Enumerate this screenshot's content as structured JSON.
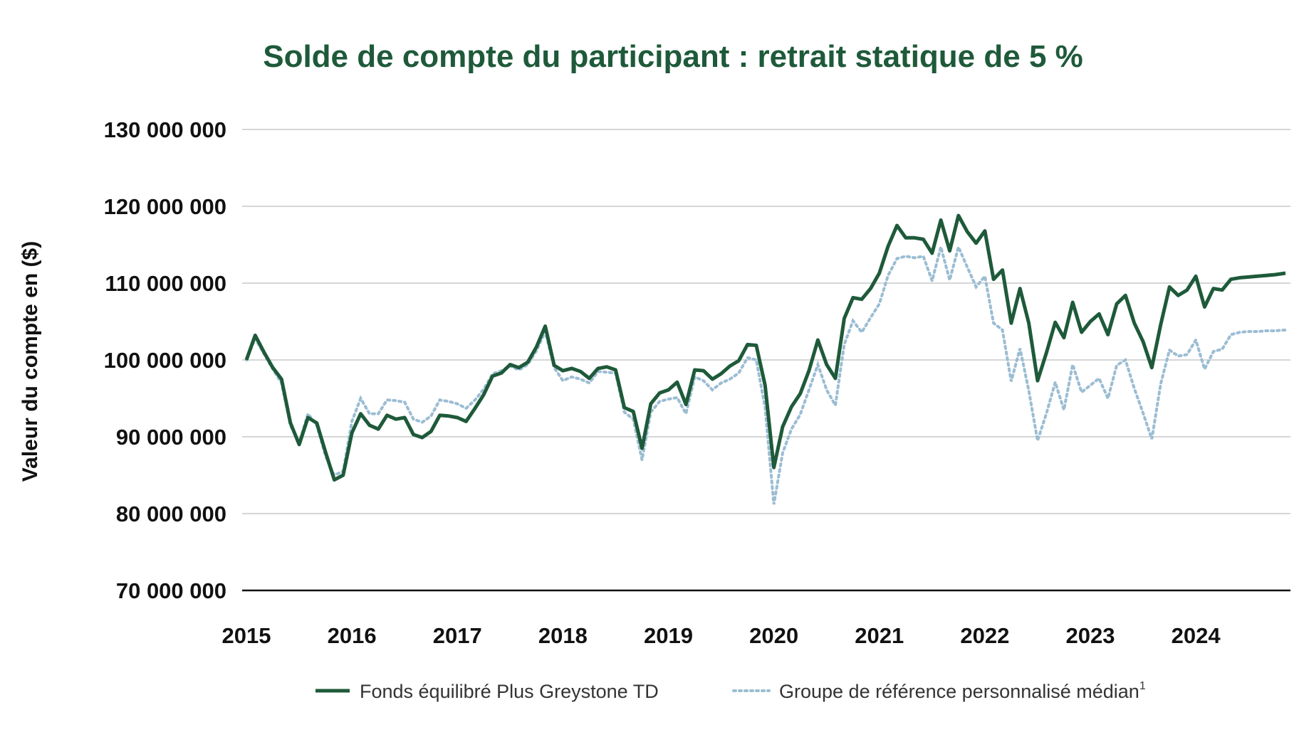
{
  "chart_data": {
    "type": "line",
    "title": "Solde de compte du participant : retrait statique de 5 %",
    "ylabel": "Valeur du compte en ($)",
    "xlabel": "",
    "ylim": [
      70000000,
      130000000
    ],
    "yticks": [
      {
        "value": 70000000,
        "label": "70 000 000"
      },
      {
        "value": 80000000,
        "label": "80 000 000"
      },
      {
        "value": 90000000,
        "label": "90 000 000"
      },
      {
        "value": 100000000,
        "label": "100 000 000"
      },
      {
        "value": 110000000,
        "label": "110 000 000"
      },
      {
        "value": 120000000,
        "label": "120 000 000"
      },
      {
        "value": 130000000,
        "label": "130 000 000"
      }
    ],
    "xlim": [
      2015.0,
      2024.85
    ],
    "xticks": [
      {
        "value": 2015,
        "label": "2015"
      },
      {
        "value": 2016,
        "label": "2016"
      },
      {
        "value": 2017,
        "label": "2017"
      },
      {
        "value": 2018,
        "label": "2018"
      },
      {
        "value": 2019,
        "label": "2019"
      },
      {
        "value": 2020,
        "label": "2020"
      },
      {
        "value": 2021,
        "label": "2021"
      },
      {
        "value": 2022,
        "label": "2022"
      },
      {
        "value": 2023,
        "label": "2023"
      },
      {
        "value": 2024,
        "label": "2024"
      }
    ],
    "grid": true,
    "legend_position": "bottom",
    "series": [
      {
        "name": "Fonds équilibré Plus Greystone TD",
        "color": "#1e5a3a",
        "style": "solid",
        "x": [
          2015.0,
          2015.083,
          2015.167,
          2015.25,
          2015.333,
          2015.417,
          2015.5,
          2015.583,
          2015.667,
          2015.75,
          2015.833,
          2015.917,
          2016.0,
          2016.083,
          2016.167,
          2016.25,
          2016.333,
          2016.417,
          2016.5,
          2016.583,
          2016.667,
          2016.75,
          2016.833,
          2016.917,
          2017.0,
          2017.083,
          2017.167,
          2017.25,
          2017.333,
          2017.417,
          2017.5,
          2017.583,
          2017.667,
          2017.75,
          2017.833,
          2017.917,
          2018.0,
          2018.083,
          2018.167,
          2018.25,
          2018.333,
          2018.417,
          2018.5,
          2018.583,
          2018.667,
          2018.75,
          2018.833,
          2018.917,
          2019.0,
          2019.083,
          2019.167,
          2019.25,
          2019.333,
          2019.417,
          2019.5,
          2019.583,
          2019.667,
          2019.75,
          2019.833,
          2019.917,
          2020.0,
          2020.083,
          2020.167,
          2020.25,
          2020.333,
          2020.417,
          2020.5,
          2020.583,
          2020.667,
          2020.75,
          2020.833,
          2020.917,
          2021.0,
          2021.083,
          2021.167,
          2021.25,
          2021.333,
          2021.417,
          2021.5,
          2021.583,
          2021.667,
          2021.75,
          2021.833,
          2021.917,
          2022.0,
          2022.083,
          2022.167,
          2022.25,
          2022.333,
          2022.417,
          2022.5,
          2022.583,
          2022.667,
          2022.75,
          2022.833,
          2022.917,
          2023.0,
          2023.083,
          2023.167,
          2023.25,
          2023.333,
          2023.417,
          2023.5,
          2023.583,
          2023.667,
          2023.75,
          2023.833,
          2023.917,
          2024.0,
          2024.083,
          2024.167,
          2024.25,
          2024.333,
          2024.417,
          2024.5,
          2024.583,
          2024.667,
          2024.75,
          2024.85
        ],
        "y": [
          100000000,
          103200000,
          101000000,
          99000000,
          97500000,
          91800000,
          89000000,
          92500000,
          91800000,
          88000000,
          84400000,
          85000000,
          90500000,
          93000000,
          91500000,
          91000000,
          92800000,
          92300000,
          92500000,
          90300000,
          89900000,
          90700000,
          92800000,
          92700000,
          92500000,
          92000000,
          93700000,
          95500000,
          97900000,
          98300000,
          99400000,
          99000000,
          99700000,
          101700000,
          104400000,
          99300000,
          98600000,
          98900000,
          98500000,
          97600000,
          98900000,
          99100000,
          98700000,
          93800000,
          93300000,
          88500000,
          94300000,
          95700000,
          96100000,
          97100000,
          94200000,
          98700000,
          98600000,
          97500000,
          98200000,
          99200000,
          99900000,
          102000000,
          101900000,
          96700000,
          86000000,
          91300000,
          93900000,
          95600000,
          98600000,
          102600000,
          99400000,
          97600000,
          105400000,
          108100000,
          107900000,
          109300000,
          111300000,
          114800000,
          117500000,
          115900000,
          115900000,
          115700000,
          113900000,
          118200000,
          114200000,
          118800000,
          116700000,
          115200000,
          116800000,
          110500000,
          111700000,
          104800000,
          109300000,
          104800000,
          97300000,
          100900000,
          104900000,
          102900000,
          107500000,
          103600000,
          105000000,
          106000000,
          103300000,
          107300000,
          108400000,
          104800000,
          102400000,
          99000000,
          104600000,
          109500000,
          108400000,
          109100000,
          110900000,
          106900000,
          109300000,
          109100000,
          110500000,
          110700000,
          110800000,
          110900000,
          111000000,
          111100000,
          111300000
        ]
      },
      {
        "name": "Groupe de référence personnalisé médian",
        "name_superscript": "1",
        "color": "#9bbdd3",
        "style": "dotted",
        "x": [
          2015.0,
          2015.083,
          2015.167,
          2015.25,
          2015.333,
          2015.417,
          2015.5,
          2015.583,
          2015.667,
          2015.75,
          2015.833,
          2015.917,
          2016.0,
          2016.083,
          2016.167,
          2016.25,
          2016.333,
          2016.417,
          2016.5,
          2016.583,
          2016.667,
          2016.75,
          2016.833,
          2016.917,
          2017.0,
          2017.083,
          2017.167,
          2017.25,
          2017.333,
          2017.417,
          2017.5,
          2017.583,
          2017.667,
          2017.75,
          2017.833,
          2017.917,
          2018.0,
          2018.083,
          2018.167,
          2018.25,
          2018.333,
          2018.417,
          2018.5,
          2018.583,
          2018.667,
          2018.75,
          2018.833,
          2018.917,
          2019.0,
          2019.083,
          2019.167,
          2019.25,
          2019.333,
          2019.417,
          2019.5,
          2019.583,
          2019.667,
          2019.75,
          2019.833,
          2019.917,
          2020.0,
          2020.083,
          2020.167,
          2020.25,
          2020.333,
          2020.417,
          2020.5,
          2020.583,
          2020.667,
          2020.75,
          2020.833,
          2020.917,
          2021.0,
          2021.083,
          2021.167,
          2021.25,
          2021.333,
          2021.417,
          2021.5,
          2021.583,
          2021.667,
          2021.75,
          2021.833,
          2021.917,
          2022.0,
          2022.083,
          2022.167,
          2022.25,
          2022.333,
          2022.417,
          2022.5,
          2022.583,
          2022.667,
          2022.75,
          2022.833,
          2022.917,
          2023.0,
          2023.083,
          2023.167,
          2023.25,
          2023.333,
          2023.417,
          2023.5,
          2023.583,
          2023.667,
          2023.75,
          2023.833,
          2023.917,
          2024.0,
          2024.083,
          2024.167,
          2024.25,
          2024.333,
          2024.417,
          2024.5,
          2024.583,
          2024.667,
          2024.75,
          2024.85
        ],
        "y": [
          100000000,
          102800000,
          100800000,
          98800000,
          97000000,
          91500000,
          89200000,
          93000000,
          91500000,
          87500000,
          85000000,
          85500000,
          92000000,
          95000000,
          93000000,
          93000000,
          94800000,
          94700000,
          94500000,
          92300000,
          91900000,
          92700000,
          94800000,
          94600000,
          94300000,
          93700000,
          94800000,
          96200000,
          98200000,
          98600000,
          99200000,
          98700000,
          99400000,
          101200000,
          103700000,
          99000000,
          97300000,
          97800000,
          97500000,
          97000000,
          98500000,
          98400000,
          98300000,
          93200000,
          92300000,
          87000000,
          93200000,
          94600000,
          94900000,
          95100000,
          93000000,
          97800000,
          97300000,
          96100000,
          97000000,
          97500000,
          98300000,
          100300000,
          100000000,
          93800000,
          81200000,
          87900000,
          91000000,
          92900000,
          96100000,
          99400000,
          96100000,
          94100000,
          102000000,
          105100000,
          103600000,
          105500000,
          107300000,
          111000000,
          113200000,
          113500000,
          113300000,
          113500000,
          110300000,
          114700000,
          110400000,
          114700000,
          112100000,
          109500000,
          110900000,
          104800000,
          103900000,
          97200000,
          101500000,
          96000000,
          89500000,
          93000000,
          97100000,
          93500000,
          99400000,
          95800000,
          96700000,
          97600000,
          95000000,
          99300000,
          100000000,
          96300000,
          93100000,
          89700000,
          96900000,
          101300000,
          100500000,
          100700000,
          102600000,
          98800000,
          101100000,
          101400000,
          103300000,
          103600000,
          103700000,
          103700000,
          103800000,
          103800000,
          103900000
        ]
      }
    ]
  }
}
